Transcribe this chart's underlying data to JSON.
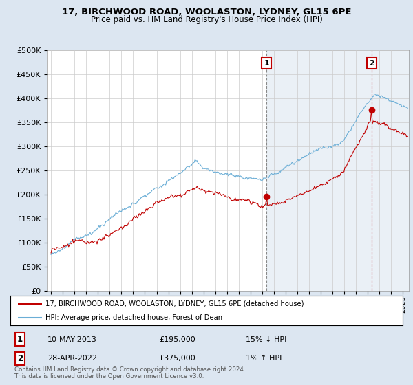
{
  "title": "17, BIRCHWOOD ROAD, WOOLASTON, LYDNEY, GL15 6PE",
  "subtitle": "Price paid vs. HM Land Registry's House Price Index (HPI)",
  "ytick_values": [
    0,
    50000,
    100000,
    150000,
    200000,
    250000,
    300000,
    350000,
    400000,
    450000,
    500000
  ],
  "ylim": [
    0,
    500000
  ],
  "xlim_start": 1994.7,
  "xlim_end": 2025.5,
  "sale1_x": 2013.36,
  "sale1_y": 195000,
  "sale2_x": 2022.33,
  "sale2_y": 375000,
  "sale1_date": "10-MAY-2013",
  "sale1_price": "£195,000",
  "sale1_pct": "15% ↓ HPI",
  "sale2_date": "28-APR-2022",
  "sale2_price": "£375,000",
  "sale2_pct": "1% ↑ HPI",
  "hpi_color": "#6baed6",
  "price_color": "#c00000",
  "vline1_color": "#888888",
  "vline2_color": "#c00000",
  "shade_color": "#dce6f1",
  "background_color": "#dce6f1",
  "plot_bg_color": "#ffffff",
  "legend_label_price": "17, BIRCHWOOD ROAD, WOOLASTON, LYDNEY, GL15 6PE (detached house)",
  "legend_label_hpi": "HPI: Average price, detached house, Forest of Dean",
  "footnote": "Contains HM Land Registry data © Crown copyright and database right 2024.\nThis data is licensed under the Open Government Licence v3.0."
}
